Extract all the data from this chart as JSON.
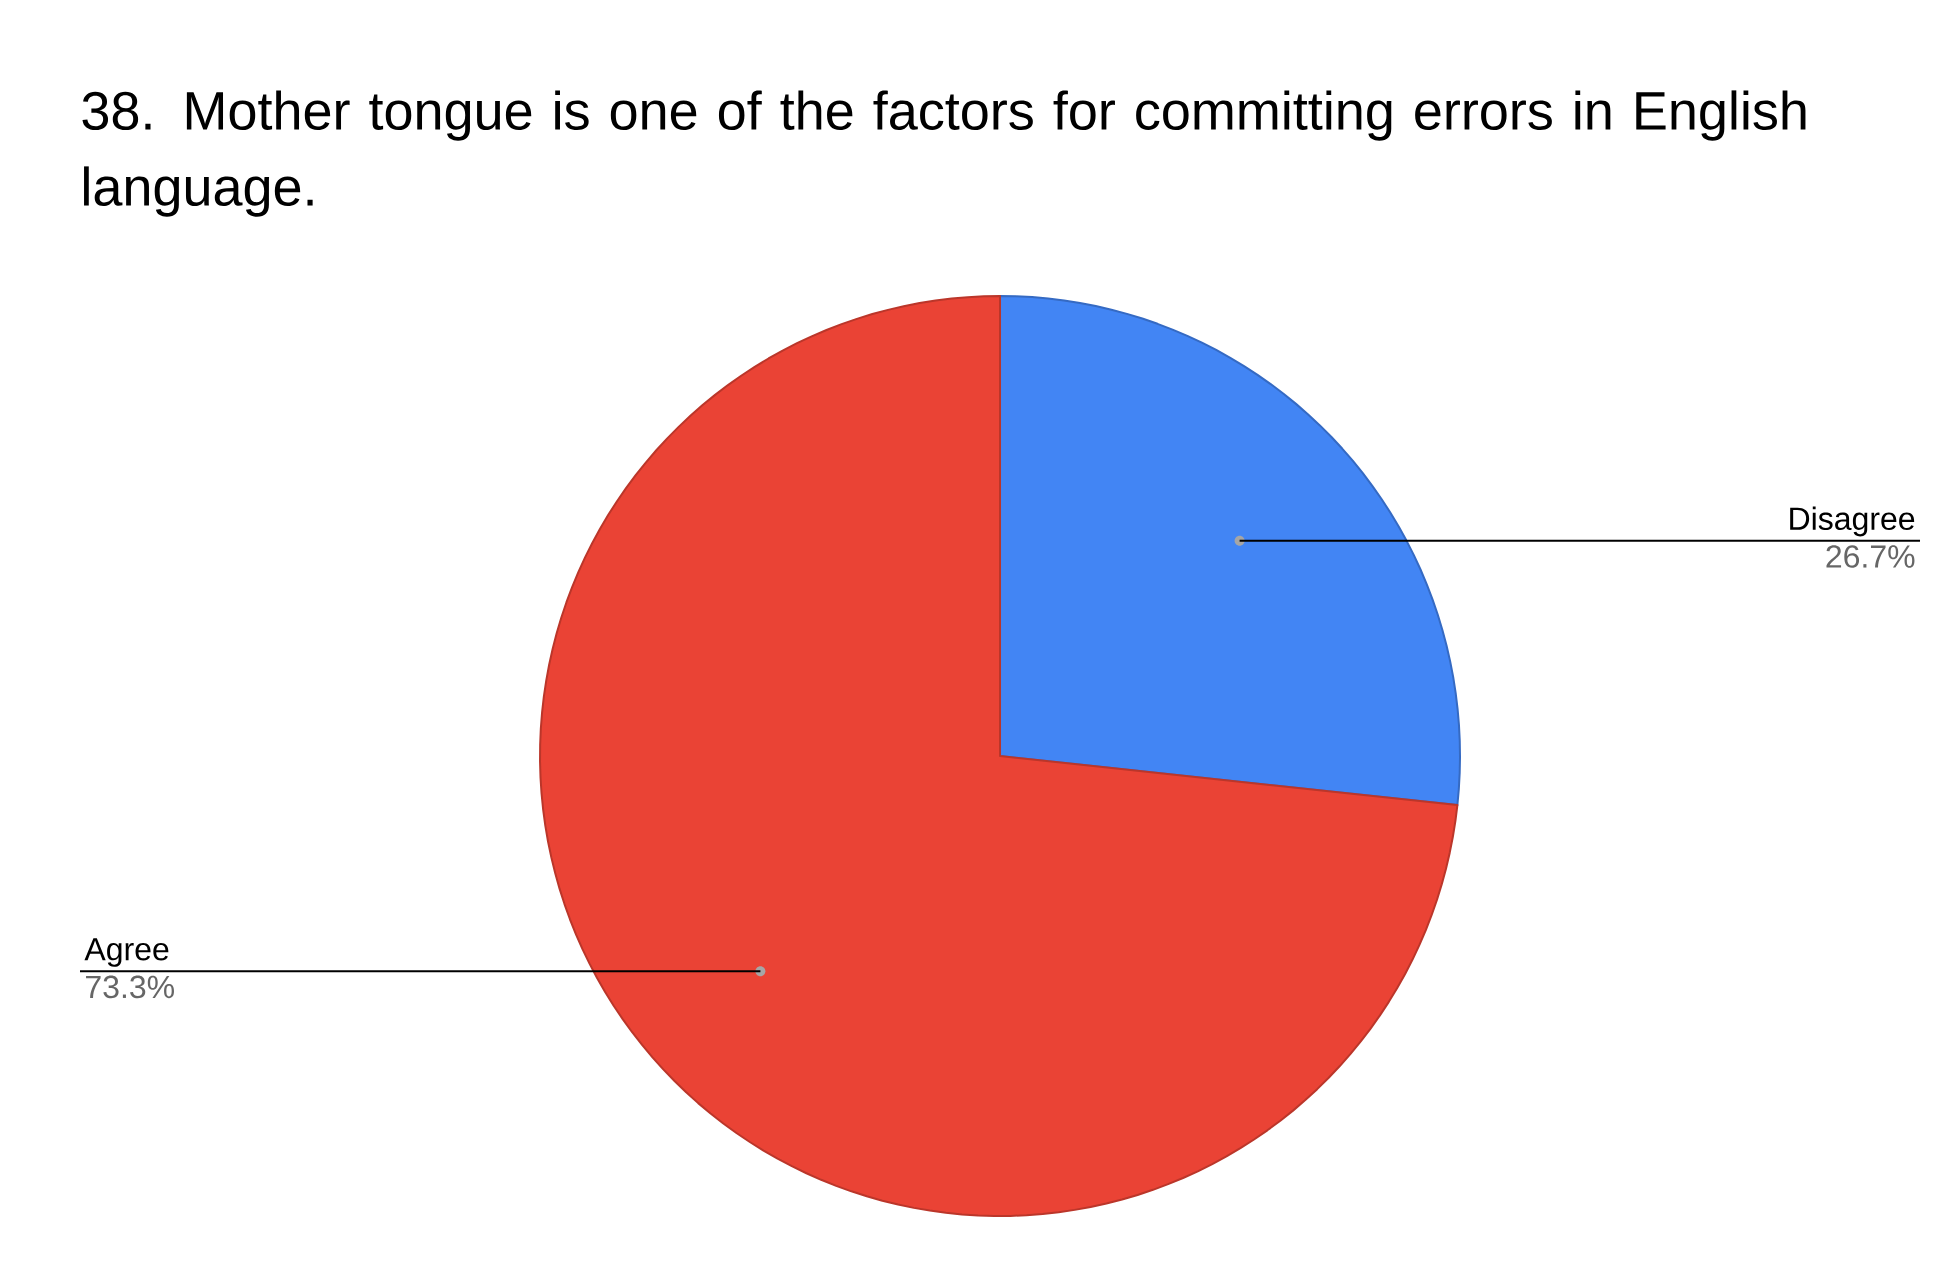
{
  "chart_data": {
    "type": "pie",
    "title": "38. Mother tongue is one of the factors for committing errors in English language.",
    "categories": [
      "Disagree",
      "Agree"
    ],
    "values": [
      26.7,
      73.3
    ],
    "colors": [
      "#4285f4",
      "#ea4335"
    ],
    "value_labels": [
      "26.7%",
      "73.3%"
    ]
  }
}
